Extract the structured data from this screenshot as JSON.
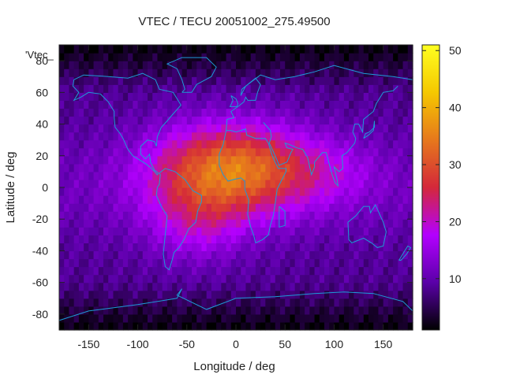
{
  "chart_data": {
    "type": "heatmap",
    "title": "VTEC / TECU 20051002_275.49500",
    "xlabel": "Longitude / deg",
    "ylabel": "Latitude / deg",
    "legend_label": "'Vtec_",
    "legend_position": "top-left",
    "xlim": [
      -180,
      180
    ],
    "ylim": [
      -90,
      90
    ],
    "x_ticks": [
      -150,
      -100,
      -50,
      0,
      50,
      100,
      150
    ],
    "y_ticks": [
      -80,
      -60,
      -40,
      -20,
      0,
      20,
      40,
      60,
      80
    ],
    "colorbar": {
      "range": [
        1,
        51
      ],
      "ticks": [
        10,
        20,
        30,
        40,
        50
      ],
      "colormap": [
        "#000000",
        "#5a00a8",
        "#b300ff",
        "#d4283a",
        "#e6781c",
        "#f5c800",
        "#ffff20"
      ]
    },
    "grid_shape": "72x36",
    "peak": {
      "lon": -5,
      "lat": 12,
      "value": 34
    },
    "background_value": 8,
    "overlay": "coastlines",
    "colors": {
      "coastline": "#1e9bd7",
      "frame": "#222222"
    }
  }
}
